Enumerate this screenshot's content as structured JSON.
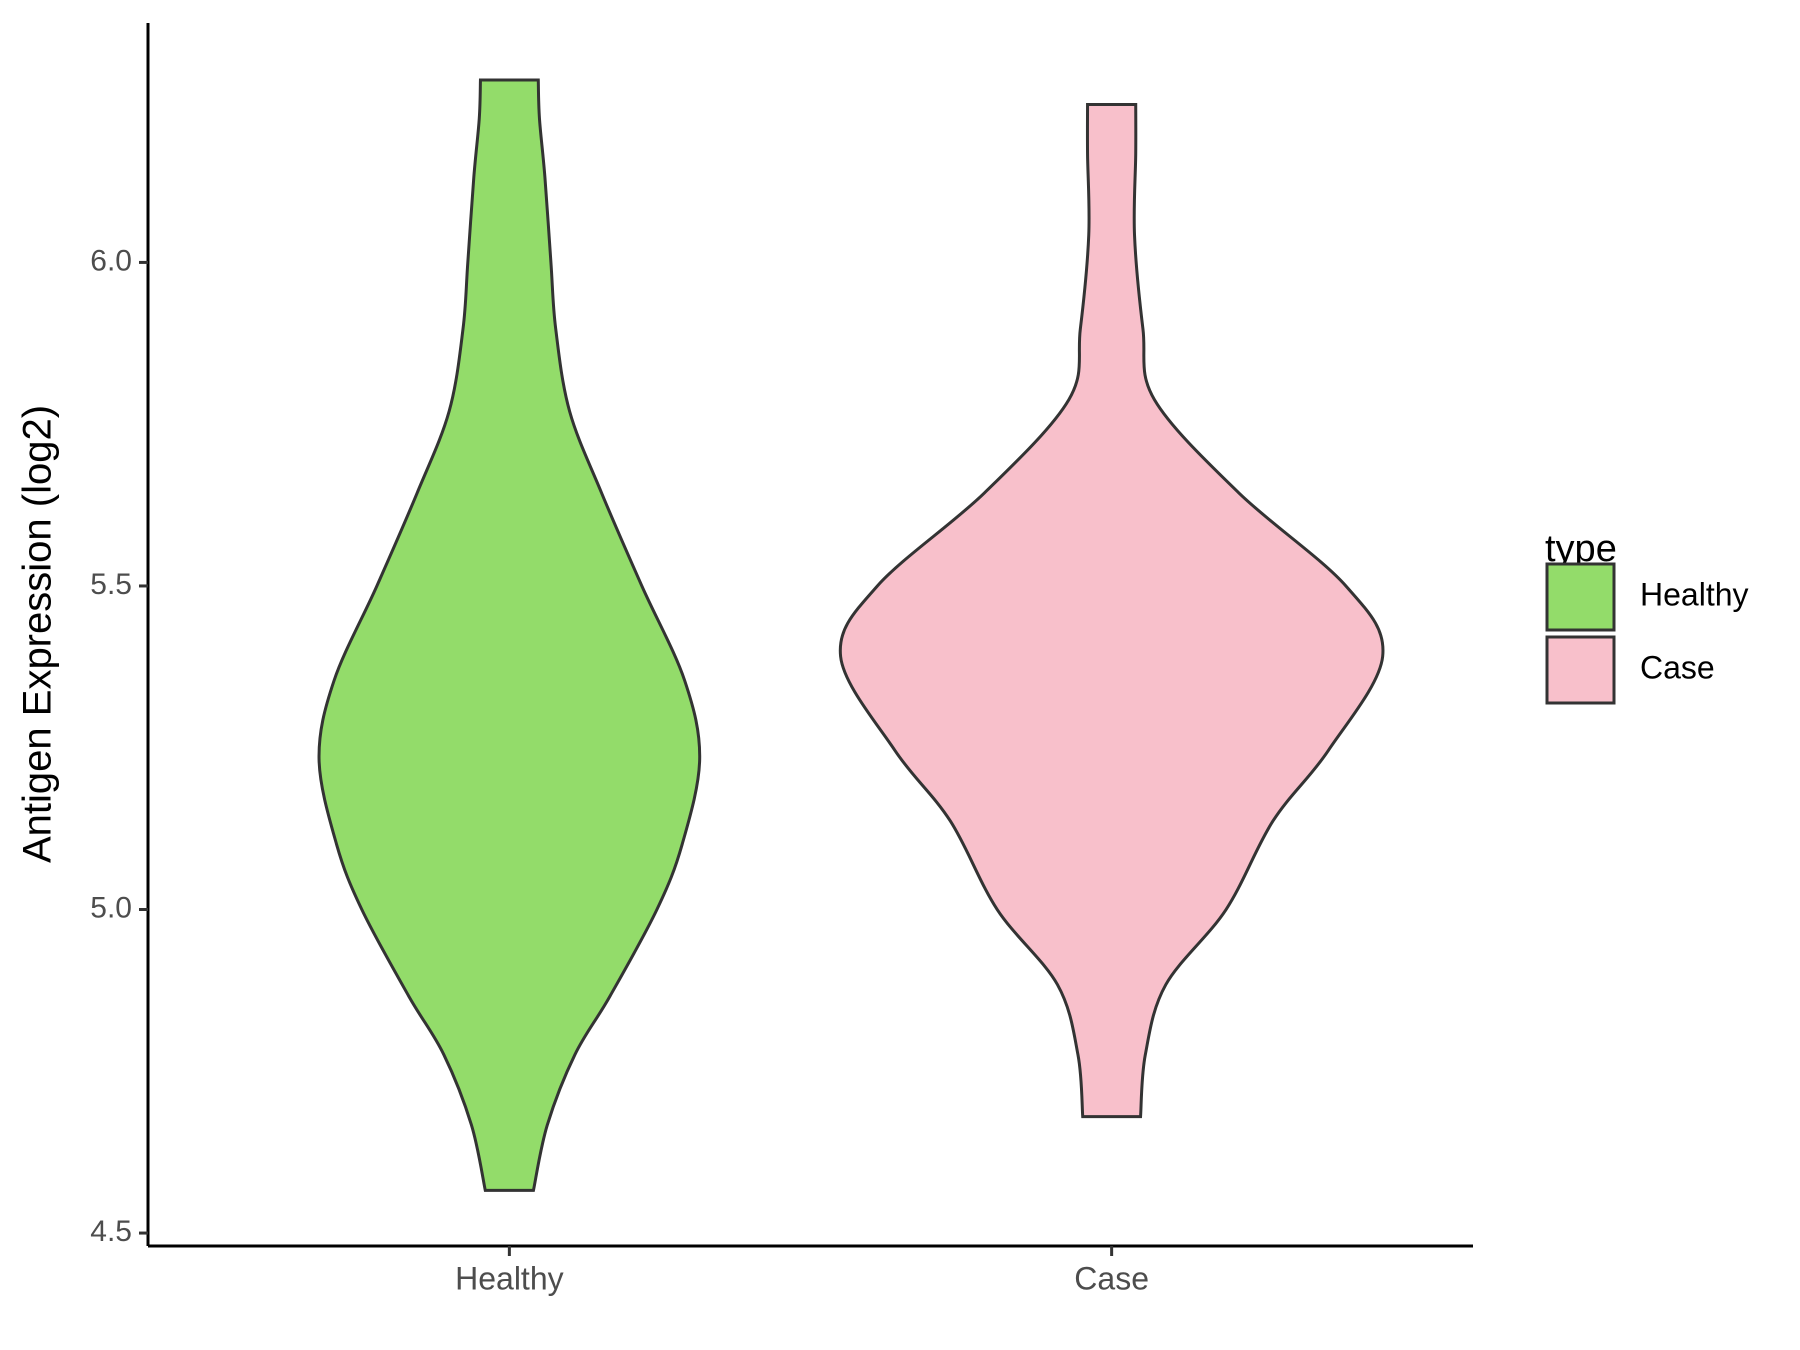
{
  "chart_data": {
    "type": "violin",
    "y_label": "Antigen Expression (log2)",
    "categories": [
      "Healthy",
      "Case"
    ],
    "series": [
      {
        "name": "Healthy",
        "color": "#93dc6a",
        "y": [
          4.566,
          4.667,
          4.776,
          4.866,
          5.0,
          5.101,
          5.233,
          5.354,
          5.5,
          5.644,
          5.77,
          5.897,
          6.0,
          6.132,
          6.222,
          6.282
        ],
        "width": [
          0.04,
          0.063,
          0.109,
          0.167,
          0.245,
          0.287,
          0.316,
          0.291,
          0.22,
          0.153,
          0.1,
          0.077,
          0.069,
          0.059,
          0.05,
          0.048
        ]
      },
      {
        "name": "Case",
        "color": "#f8c0cb",
        "y": [
          4.68,
          4.776,
          4.884,
          5.0,
          5.137,
          5.246,
          5.391,
          5.5,
          5.644,
          5.788,
          5.897,
          6.042,
          6.168,
          6.244
        ],
        "width": [
          0.048,
          0.056,
          0.09,
          0.19,
          0.268,
          0.36,
          0.45,
          0.389,
          0.211,
          0.071,
          0.052,
          0.038,
          0.04,
          0.04
        ]
      }
    ],
    "xlim": [
      0.4,
      2.6
    ],
    "ylim": [
      4.48,
      6.37
    ],
    "yticks": [
      {
        "value": 4.5,
        "label": "4.5"
      },
      {
        "value": 5,
        "label": "5.0"
      },
      {
        "value": 5.5,
        "label": "5.5"
      },
      {
        "value": 6,
        "label": "6.0"
      }
    ],
    "legend_title": "type",
    "legend_position": "right",
    "grid": false
  }
}
